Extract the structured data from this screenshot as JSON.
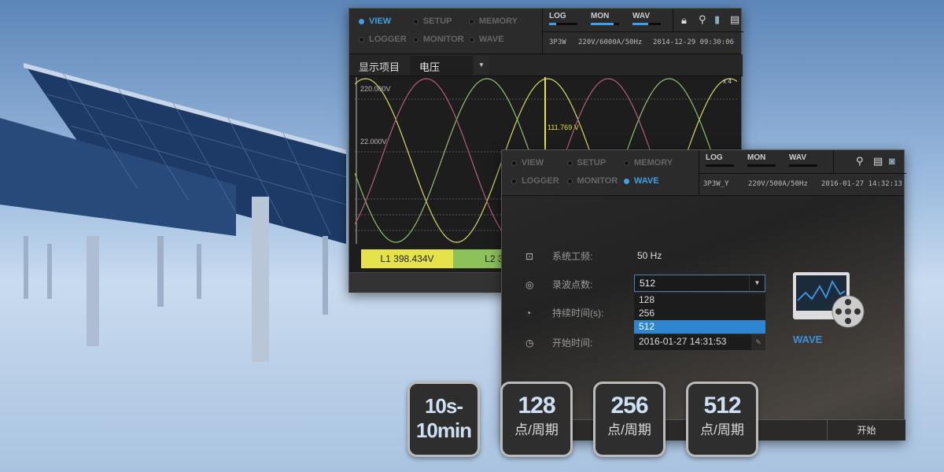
{
  "screen1": {
    "modes": [
      {
        "label": "VIEW",
        "active": true
      },
      {
        "label": "SETUP",
        "active": false
      },
      {
        "label": "MEMORY",
        "active": false
      },
      {
        "label": "LOGGER",
        "active": false
      },
      {
        "label": "MONITOR",
        "active": false
      },
      {
        "label": "WAVE",
        "active": false
      }
    ],
    "indicators": [
      {
        "label": "LOG",
        "level": 0.25
      },
      {
        "label": "MON",
        "level": 0.8
      },
      {
        "label": "WAV",
        "level": 0.55
      }
    ],
    "icons": [
      "lock-icon",
      "usb-icon",
      "battery-icon",
      "sd-card-icon"
    ],
    "wiring": "3P3W",
    "range": "220V/6000A/50Hz",
    "datetime": "2014-12-29 09:30:06",
    "display_item_label": "显示项目",
    "display_item_value": "电压",
    "scale_top": "220.000V",
    "scale_mid": "22.000V",
    "cursor_value": "111.769 V",
    "zoom": "x 4",
    "measurements": [
      {
        "label": "L1 398.434V",
        "color": "#e6e24a"
      },
      {
        "label": "L2 398",
        "color": "#8dc25a"
      }
    ],
    "wave_colors": [
      "#d8d66a",
      "#8fbf73",
      "#b0607a"
    ]
  },
  "screen2": {
    "modes": [
      {
        "label": "VIEW",
        "active": false
      },
      {
        "label": "SETUP",
        "active": false
      },
      {
        "label": "MEMORY",
        "active": false
      },
      {
        "label": "LOGGER",
        "active": false
      },
      {
        "label": "MONITOR",
        "active": false
      },
      {
        "label": "WAVE",
        "active": true
      }
    ],
    "indicators": [
      {
        "label": "LOG",
        "level": 0
      },
      {
        "label": "MON",
        "level": 0
      },
      {
        "label": "WAV",
        "level": 0
      }
    ],
    "wiring": "3P3W_Y",
    "range": "220V/500A/50Hz",
    "datetime": "2016-01-27 14:32:13",
    "fields": [
      {
        "label": "系统工频:",
        "value": "50 Hz"
      },
      {
        "label": "录波点数:",
        "value": "512"
      },
      {
        "label": "持续时间(s):"
      },
      {
        "label": "开始时间:",
        "value": "2016-01-27 14:31:53"
      }
    ],
    "options": [
      "128",
      "256",
      "512"
    ],
    "selected": "512",
    "wave_logo": "WAVE",
    "start_button": "开始"
  },
  "tiles": [
    {
      "n": "10s-",
      "u": "10min"
    },
    {
      "n": "128",
      "u": "点/周期"
    },
    {
      "n": "256",
      "u": "点/周期"
    },
    {
      "n": "512",
      "u": "点/周期"
    }
  ]
}
